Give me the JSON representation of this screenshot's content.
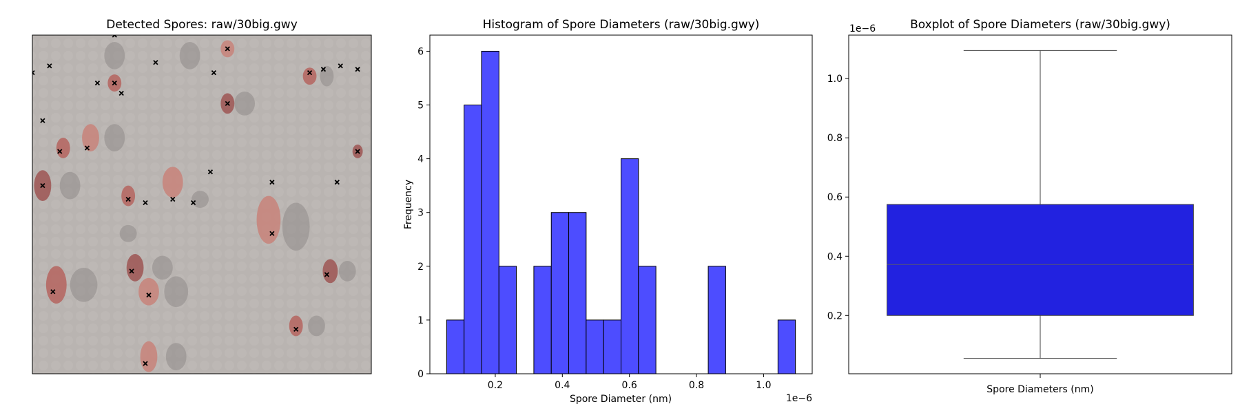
{
  "panel1": {
    "title": "Detected Spores: raw/30big.gwy"
  },
  "panel2": {
    "title": "Histogram of Spore Diameters (raw/30big.gwy)"
  },
  "panel3": {
    "title": "Boxplot of Spore Diameters (raw/30big.gwy)"
  },
  "chart_data": [
    {
      "type": "image",
      "title": "Detected Spores: raw/30big.gwy",
      "image_extent": [
        1,
        100
      ],
      "markers": [
        {
          "x": 25,
          "y": 1
        },
        {
          "x": 1,
          "y": 12
        },
        {
          "x": 6,
          "y": 10
        },
        {
          "x": 37,
          "y": 9
        },
        {
          "x": 58,
          "y": 5
        },
        {
          "x": 54,
          "y": 12
        },
        {
          "x": 20,
          "y": 15
        },
        {
          "x": 25,
          "y": 15
        },
        {
          "x": 27,
          "y": 18
        },
        {
          "x": 58,
          "y": 21
        },
        {
          "x": 82,
          "y": 12
        },
        {
          "x": 86,
          "y": 11
        },
        {
          "x": 91,
          "y": 10
        },
        {
          "x": 96,
          "y": 11
        },
        {
          "x": 4,
          "y": 26
        },
        {
          "x": 9,
          "y": 35
        },
        {
          "x": 17,
          "y": 34
        },
        {
          "x": 53,
          "y": 41
        },
        {
          "x": 96,
          "y": 35
        },
        {
          "x": 4,
          "y": 45
        },
        {
          "x": 29,
          "y": 49
        },
        {
          "x": 34,
          "y": 50
        },
        {
          "x": 42,
          "y": 49
        },
        {
          "x": 48,
          "y": 50
        },
        {
          "x": 71,
          "y": 44
        },
        {
          "x": 90,
          "y": 44
        },
        {
          "x": 71,
          "y": 59
        },
        {
          "x": 30,
          "y": 70
        },
        {
          "x": 87,
          "y": 71
        },
        {
          "x": 7,
          "y": 76
        },
        {
          "x": 35,
          "y": 77
        },
        {
          "x": 78,
          "y": 87
        },
        {
          "x": 34,
          "y": 97
        }
      ],
      "spores": [
        {
          "x": 10,
          "y": 34,
          "rx": 2,
          "ry": 3
        },
        {
          "x": 18,
          "y": 31,
          "rx": 2.5,
          "ry": 4
        },
        {
          "x": 4,
          "y": 45,
          "rx": 2.5,
          "ry": 4.5
        },
        {
          "x": 29,
          "y": 48,
          "rx": 2,
          "ry": 3
        },
        {
          "x": 42,
          "y": 44,
          "rx": 3,
          "ry": 4.5
        },
        {
          "x": 58,
          "y": 21,
          "rx": 2,
          "ry": 3
        },
        {
          "x": 25,
          "y": 15,
          "rx": 2,
          "ry": 2.5
        },
        {
          "x": 70,
          "y": 55,
          "rx": 3.5,
          "ry": 7
        },
        {
          "x": 31,
          "y": 69,
          "rx": 2.5,
          "ry": 4
        },
        {
          "x": 8,
          "y": 74,
          "rx": 3,
          "ry": 5.5
        },
        {
          "x": 35,
          "y": 76,
          "rx": 3,
          "ry": 4
        },
        {
          "x": 88,
          "y": 70,
          "rx": 2.2,
          "ry": 3.5
        },
        {
          "x": 78,
          "y": 86,
          "rx": 2,
          "ry": 3
        },
        {
          "x": 35,
          "y": 95,
          "rx": 2.5,
          "ry": 4.5
        },
        {
          "x": 96,
          "y": 35,
          "rx": 1.5,
          "ry": 2
        },
        {
          "x": 82,
          "y": 13,
          "rx": 2,
          "ry": 2.5
        },
        {
          "x": 58,
          "y": 5,
          "rx": 2,
          "ry": 2.5
        }
      ],
      "dark_shadows": [
        {
          "x": 25,
          "y": 7,
          "rx": 3,
          "ry": 4
        },
        {
          "x": 47,
          "y": 7,
          "rx": 3,
          "ry": 4
        },
        {
          "x": 25,
          "y": 31,
          "rx": 3,
          "ry": 4
        },
        {
          "x": 63,
          "y": 21,
          "rx": 3,
          "ry": 3.5
        },
        {
          "x": 78,
          "y": 57,
          "rx": 4,
          "ry": 7
        },
        {
          "x": 16,
          "y": 74,
          "rx": 4,
          "ry": 5
        },
        {
          "x": 43,
          "y": 76,
          "rx": 3.5,
          "ry": 4.5
        },
        {
          "x": 50,
          "y": 49,
          "rx": 2.5,
          "ry": 2.5
        },
        {
          "x": 12,
          "y": 45,
          "rx": 3,
          "ry": 4
        },
        {
          "x": 39,
          "y": 69,
          "rx": 3,
          "ry": 3.5
        },
        {
          "x": 43,
          "y": 95,
          "rx": 3,
          "ry": 4
        },
        {
          "x": 84,
          "y": 86,
          "rx": 2.5,
          "ry": 3
        },
        {
          "x": 93,
          "y": 70,
          "rx": 2.5,
          "ry": 3
        },
        {
          "x": 87,
          "y": 13,
          "rx": 2,
          "ry": 3
        },
        {
          "x": 29,
          "y": 59,
          "rx": 2.5,
          "ry": 2.5
        }
      ]
    },
    {
      "type": "bar",
      "title": "Histogram of Spore Diameters (raw/30big.gwy)",
      "xlabel": "Spore Diameter (nm)",
      "ylabel": "Frequency",
      "x_offset_label": "1e−6",
      "bin_start": 0.055,
      "bin_width": 0.052,
      "counts": [
        1,
        5,
        6,
        2,
        0,
        2,
        3,
        3,
        1,
        1,
        4,
        2,
        0,
        0,
        0,
        2,
        0,
        0,
        0,
        1
      ],
      "xlim": [
        0.005,
        1.145
      ],
      "ylim": [
        0,
        6.3
      ],
      "xticks": [
        0.2,
        0.4,
        0.6,
        0.8,
        1.0
      ],
      "xtick_labels": [
        "0.2",
        "0.4",
        "0.6",
        "0.8",
        "1.0"
      ],
      "yticks": [
        0,
        1,
        2,
        3,
        4,
        5,
        6
      ],
      "ytick_labels": [
        "0",
        "1",
        "2",
        "3",
        "4",
        "5",
        "6"
      ],
      "bar_color": "#4d4dff",
      "edge_color": "#000000"
    },
    {
      "type": "box",
      "title": "Boxplot of Spore Diameters (raw/30big.gwy)",
      "xlabel": "Spore Diameters (nm)",
      "y_offset_label": "1e−6",
      "whisker_low": 0.055,
      "q1": 0.2,
      "median": 0.372,
      "q3": 0.575,
      "whisker_high": 1.095,
      "ylim": [
        0.003,
        1.147
      ],
      "yticks": [
        0.2,
        0.4,
        0.6,
        0.8,
        1.0
      ],
      "ytick_labels": [
        "0.2",
        "0.4",
        "0.6",
        "0.8",
        "1.0"
      ],
      "box_color": "#2222e0"
    }
  ]
}
